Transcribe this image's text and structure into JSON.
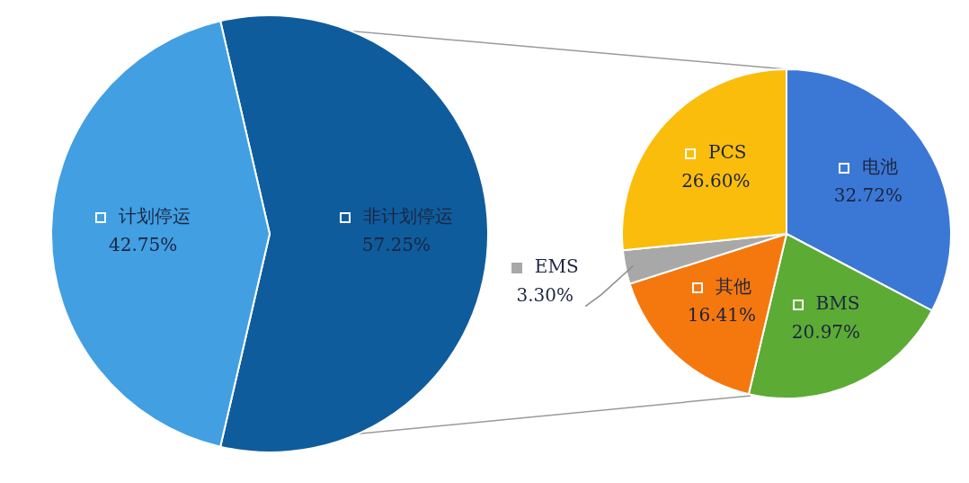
{
  "chart_data": [
    {
      "type": "pie",
      "categories": [
        "非计划停运",
        "计划停运"
      ],
      "values": [
        57.25,
        42.75
      ],
      "value_labels": [
        "57.25%",
        "42.75%"
      ],
      "colors": [
        "#0f5c9c",
        "#419fe2"
      ]
    },
    {
      "type": "pie",
      "categories": [
        "电池",
        "BMS",
        "其他",
        "EMS",
        "PCS"
      ],
      "values": [
        32.72,
        20.97,
        16.41,
        3.3,
        26.6
      ],
      "value_labels": [
        "32.72%",
        "20.97%",
        "16.41%",
        "3.30%",
        "26.60%"
      ],
      "colors": [
        "#3b78d5",
        "#5cab35",
        "#f5780f",
        "#a8a8a8",
        "#fbbd0b"
      ],
      "legend": "left"
    }
  ]
}
